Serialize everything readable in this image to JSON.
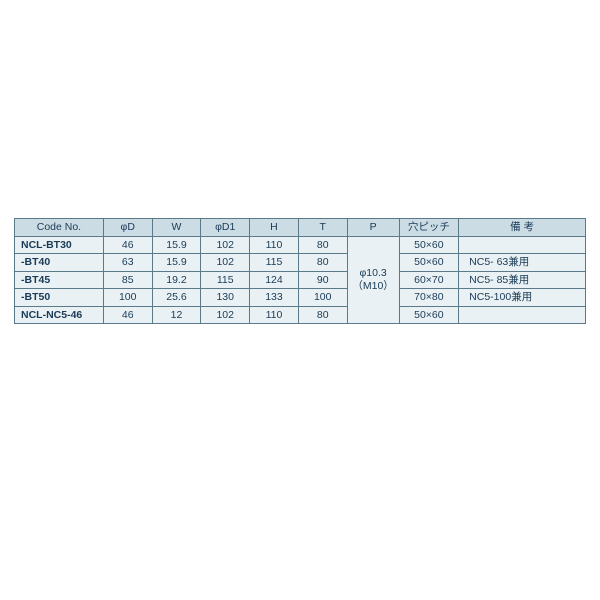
{
  "table": {
    "headers": [
      "Code No.",
      "φD",
      "W",
      "φD1",
      "H",
      "T",
      "P",
      "穴ピッチ",
      "備 考"
    ],
    "p_line1": "φ10.3",
    "p_line2": "（M10）",
    "rows": [
      {
        "code": "NCL-BT30",
        "d": "46",
        "w": "15.9",
        "d1": "102",
        "h": "110",
        "t": "80",
        "pitch": "50×60",
        "note": ""
      },
      {
        "code": "-BT40",
        "d": "63",
        "w": "15.9",
        "d1": "102",
        "h": "115",
        "t": "80",
        "pitch": "50×60",
        "note": "NC5- 63兼用"
      },
      {
        "code": "-BT45",
        "d": "85",
        "w": "19.2",
        "d1": "115",
        "h": "124",
        "t": "90",
        "pitch": "60×70",
        "note": "NC5- 85兼用"
      },
      {
        "code": "-BT50",
        "d": "100",
        "w": "25.6",
        "d1": "130",
        "h": "133",
        "t": "100",
        "pitch": "70×80",
        "note": "NC5-100兼用"
      },
      {
        "code": "NCL-NC5-46",
        "d": "46",
        "w": "12",
        "d1": "102",
        "h": "110",
        "t": "80",
        "pitch": "50×60",
        "note": ""
      }
    ]
  },
  "colors": {
    "header_bg": "#cbdce4",
    "body_bg": "#e9f1f4",
    "border": "#5a7a8a",
    "text": "#1a3a56"
  }
}
